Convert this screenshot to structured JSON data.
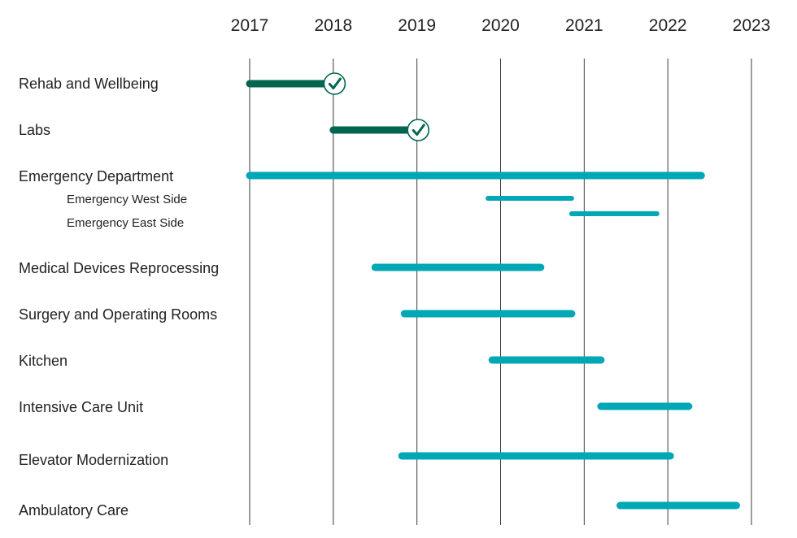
{
  "chart_data": {
    "type": "gantt",
    "title": "",
    "x_ticks": [
      "2017",
      "2018",
      "2019",
      "2020",
      "2021",
      "2022",
      "2023"
    ],
    "xlim": [
      2017,
      2023
    ],
    "grid": "vertical lines at each year",
    "status_colors": {
      "completed": "#006650",
      "in_progress": "#00A7B5"
    },
    "projects": [
      {
        "name": "Rehab and Wellbeing",
        "start": 2017.0,
        "end": 2018.02,
        "status": "completed",
        "level": 0
      },
      {
        "name": "Labs",
        "start": 2018.0,
        "end": 2019.02,
        "status": "completed",
        "level": 0
      },
      {
        "name": "Emergency Department",
        "start": 2017.0,
        "end": 2022.4,
        "status": "in_progress",
        "level": 0
      },
      {
        "name": "Emergency West Side",
        "start": 2019.85,
        "end": 2020.85,
        "status": "in_progress",
        "level": 1
      },
      {
        "name": "Emergency East Side",
        "start": 2020.85,
        "end": 2021.87,
        "status": "in_progress",
        "level": 1
      },
      {
        "name": "Medical Devices Reprocessing",
        "start": 2018.5,
        "end": 2020.48,
        "status": "in_progress",
        "level": 0
      },
      {
        "name": "Surgery and Operating Rooms",
        "start": 2018.85,
        "end": 2020.85,
        "status": "in_progress",
        "level": 0
      },
      {
        "name": "Kitchen",
        "start": 2019.9,
        "end": 2021.2,
        "status": "in_progress",
        "level": 0
      },
      {
        "name": "Intensive Care Unit",
        "start": 2021.2,
        "end": 2022.25,
        "status": "in_progress",
        "level": 0
      },
      {
        "name": "Elevator Modernization",
        "start": 2018.82,
        "end": 2022.03,
        "status": "in_progress",
        "level": 0
      },
      {
        "name": "Ambulatory Care",
        "start": 2021.43,
        "end": 2022.82,
        "status": "in_progress",
        "level": 0
      }
    ]
  }
}
